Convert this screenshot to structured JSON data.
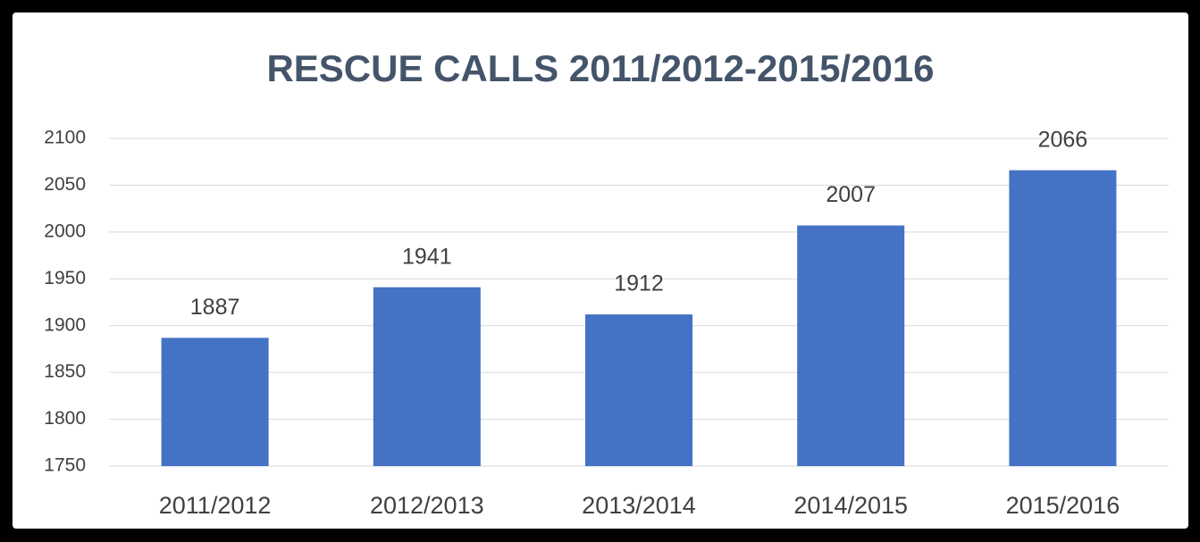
{
  "chart_data": {
    "type": "bar",
    "title": "RESCUE CALLS 2011/2012-2015/2016",
    "categories": [
      "2011/2012",
      "2012/2013",
      "2013/2014",
      "2014/2015",
      "2015/2016"
    ],
    "values": [
      1887,
      1941,
      1912,
      2007,
      2066
    ],
    "color": "#4472c4",
    "ylim": [
      1750,
      2100
    ],
    "yticks": [
      1750,
      1800,
      1850,
      1900,
      1950,
      2000,
      2050,
      2100
    ],
    "grid": true
  }
}
